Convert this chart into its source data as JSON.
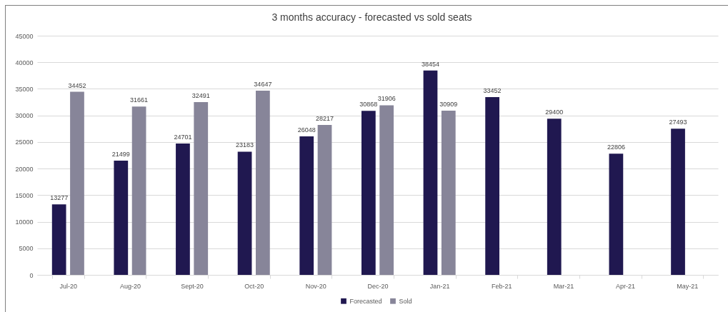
{
  "chart_data": {
    "type": "bar",
    "title": "3 months accuracy - forecasted vs sold seats",
    "categories": [
      "Jul-20",
      "Aug-20",
      "Sept-20",
      "Oct-20",
      "Nov-20",
      "Dec-20",
      "Jan-21",
      "Feb-21",
      "Mar-21",
      "Apr-21",
      "May-21"
    ],
    "series": [
      {
        "name": "Forecasted",
        "color": "#201850",
        "values": [
          13277,
          21499,
          24701,
          23183,
          26048,
          30868,
          38454,
          33452,
          29400,
          22806,
          27493
        ]
      },
      {
        "name": "Sold",
        "color": "#878599",
        "values": [
          34452,
          31661,
          32491,
          34647,
          28217,
          31906,
          30909,
          null,
          null,
          null,
          null
        ]
      }
    ],
    "ylim": [
      0,
      45000
    ],
    "yticks": [
      0,
      5000,
      10000,
      15000,
      20000,
      25000,
      30000,
      35000,
      40000,
      45000
    ],
    "grid": "y",
    "legend": "bottom",
    "data_labels": true
  }
}
